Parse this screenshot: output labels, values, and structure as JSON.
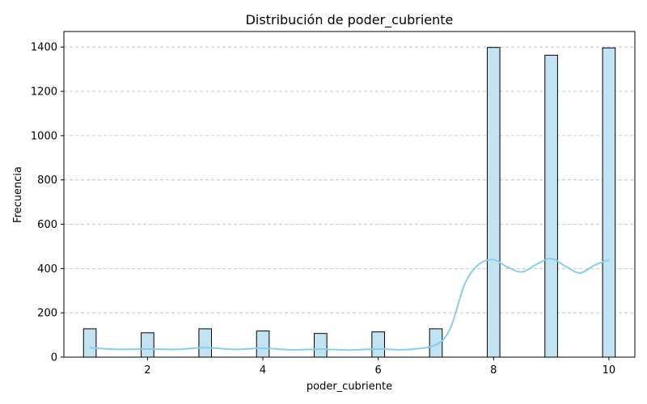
{
  "chart_data": {
    "type": "bar",
    "title": "Distribución de poder_cubriente",
    "xlabel": "poder_cubriente",
    "ylabel": "Frecuencia",
    "xlim": [
      0.55,
      10.45
    ],
    "ylim": [
      0,
      1470
    ],
    "xticks": [
      2,
      4,
      6,
      8,
      10
    ],
    "yticks": [
      0,
      200,
      400,
      600,
      800,
      1000,
      1200,
      1400
    ],
    "grid": "y-dashed",
    "bar_width": 0.3,
    "bars": [
      {
        "x": 1,
        "value": 128
      },
      {
        "x": 2,
        "value": 110
      },
      {
        "x": 3,
        "value": 128
      },
      {
        "x": 4,
        "value": 118
      },
      {
        "x": 5,
        "value": 107
      },
      {
        "x": 6,
        "value": 114
      },
      {
        "x": 7,
        "value": 128
      },
      {
        "x": 8,
        "value": 1398
      },
      {
        "x": 9,
        "value": 1363
      },
      {
        "x": 10,
        "value": 1396
      }
    ],
    "kde": {
      "x": [
        1,
        1.5,
        2,
        2.5,
        3,
        3.5,
        4,
        4.5,
        5,
        5.5,
        6,
        6.5,
        7,
        7.25,
        7.5,
        7.75,
        8,
        8.25,
        8.5,
        8.75,
        9,
        9.25,
        9.5,
        9.75,
        10
      ],
      "y": [
        42,
        35,
        37,
        35,
        43,
        35,
        40,
        33,
        36,
        32,
        37,
        34,
        56,
        130,
        330,
        420,
        440,
        405,
        385,
        420,
        445,
        410,
        380,
        415,
        440
      ]
    },
    "colors": {
      "bar_fill": "#c2e4f2",
      "bar_edge": "#000000",
      "kde_line": "#87ceeb",
      "grid": "#b8b8b8"
    }
  }
}
